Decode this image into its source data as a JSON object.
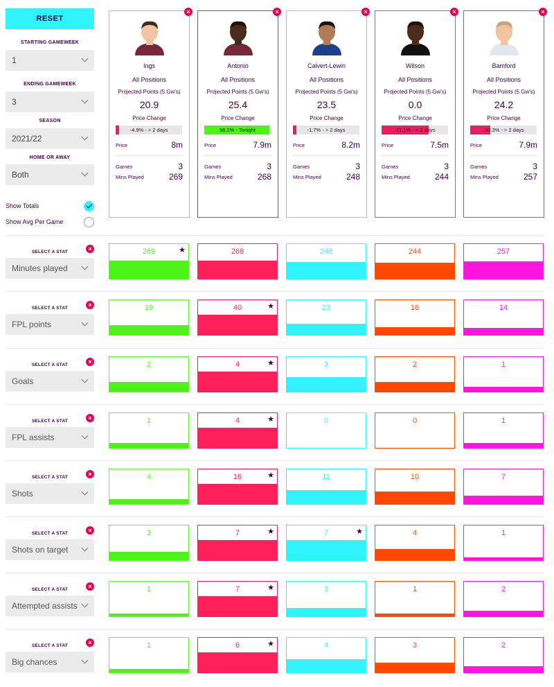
{
  "sidebar": {
    "reset_label": "RESET",
    "starting_gameweek": {
      "label": "STARTING GAMEWEEK",
      "value": "1"
    },
    "ending_gameweek": {
      "label": "ENDING GAMEWEEK",
      "value": "3"
    },
    "season": {
      "label": "SEASON",
      "value": "2021/22"
    },
    "home_or_away": {
      "label": "HOME OR AWAY",
      "value": "Both"
    },
    "show_totals": {
      "label": "Show Totals",
      "checked": true
    },
    "show_avg": {
      "label": "Show Avg Per Game",
      "checked": false
    }
  },
  "card_labels": {
    "position": "All Positions",
    "projected": "Projected Points (5 Gw's)",
    "price_change": "Price Change",
    "price": "Price",
    "games": "Games",
    "mins": "Mins Played"
  },
  "players": [
    {
      "name": "Ings",
      "projected": "20.9",
      "price_change_text": "-4.9% - > 2 days",
      "price_change_pct": 4.9,
      "price_change_color": "#e6215f",
      "price": "8m",
      "games": "3",
      "mins": "269",
      "color": "#5cf22c",
      "fill_color": "#4ef216",
      "shirt": "#7a263a",
      "skin": "#f0c3a3",
      "hair": "#3b2a1f"
    },
    {
      "name": "Antonio",
      "projected": "25.4",
      "price_change_text": "98.2% - Tonight",
      "price_change_pct": 98.2,
      "price_change_color": "#4ef216",
      "price": "7.9m",
      "games": "3",
      "mins": "268",
      "color": "#e6215f",
      "fill_color": "#ff1f5a",
      "shirt": "#7a263a",
      "skin": "#4a2c1d",
      "hair": "#1c130d"
    },
    {
      "name": "Calvert-Lewin",
      "projected": "23.5",
      "price_change_text": "-1.7% - > 2 days",
      "price_change_pct": 1.7,
      "price_change_color": "#e6215f",
      "price": "8.2m",
      "games": "3",
      "mins": "248",
      "color": "#2ff2fc",
      "fill_color": "#2ff2fc",
      "shirt": "#1e3f8c",
      "skin": "#b07a55",
      "hair": "#1c130d"
    },
    {
      "name": "Wilson",
      "projected": "0.0",
      "price_change_text": "-71.1% - > 2 days",
      "price_change_pct": 71.1,
      "price_change_color": "#e6215f",
      "price": "7.5m",
      "games": "3",
      "mins": "244",
      "color": "#ff4d00",
      "fill_color": "#ff4800",
      "shirt": "#111111",
      "skin": "#4a2c1d",
      "hair": "#1c130d"
    },
    {
      "name": "Bamford",
      "projected": "24.2",
      "price_change_text": "-30.3% - > 2 days",
      "price_change_pct": 30.3,
      "price_change_color": "#e6215f",
      "price": "7.9m",
      "games": "3",
      "mins": "257",
      "color": "#e61ee6",
      "fill_color": "#ff14e0",
      "shirt": "#e4e8ee",
      "skin": "#f0c3a3",
      "hair": "#c9a57a"
    }
  ],
  "stat_label": "SELECT A STAT",
  "stats": [
    {
      "name": "Minutes played",
      "values": [
        "269",
        "268",
        "248",
        "244",
        "257"
      ],
      "fills": [
        0.52,
        0.52,
        0.48,
        0.47,
        0.5
      ],
      "star": 0
    },
    {
      "name": "FPL points",
      "values": [
        "19",
        "40",
        "23",
        "16",
        "14"
      ],
      "fills": [
        0.29,
        0.58,
        0.33,
        0.23,
        0.2
      ],
      "star": 1
    },
    {
      "name": "Goals",
      "values": [
        "2",
        "4",
        "3",
        "2",
        "1"
      ],
      "fills": [
        0.29,
        0.58,
        0.43,
        0.29,
        0.15
      ],
      "star": 1
    },
    {
      "name": "FPL assists",
      "values": [
        "1",
        "4",
        "0",
        "0",
        "1"
      ],
      "fills": [
        0.15,
        0.58,
        0,
        0,
        0.15
      ],
      "star": 1
    },
    {
      "name": "Shots",
      "values": [
        "4",
        "16",
        "11",
        "10",
        "7"
      ],
      "fills": [
        0.15,
        0.58,
        0.4,
        0.36,
        0.25
      ],
      "star": 1
    },
    {
      "name": "Shots on target",
      "values": [
        "3",
        "7",
        "7",
        "4",
        "1"
      ],
      "fills": [
        0.25,
        0.58,
        0.58,
        0.33,
        0.08
      ],
      "star": [
        1,
        2
      ]
    },
    {
      "name": "Attempted assists",
      "values": [
        "1",
        "7",
        "3",
        "1",
        "2"
      ],
      "fills": [
        0.08,
        0.58,
        0.25,
        0.08,
        0.17
      ],
      "star": 1
    },
    {
      "name": "Big chances",
      "values": [
        "1",
        "6",
        "4",
        "3",
        "2"
      ],
      "fills": [
        0.1,
        0.58,
        0.38,
        0.29,
        0.19
      ],
      "star": 1
    }
  ]
}
